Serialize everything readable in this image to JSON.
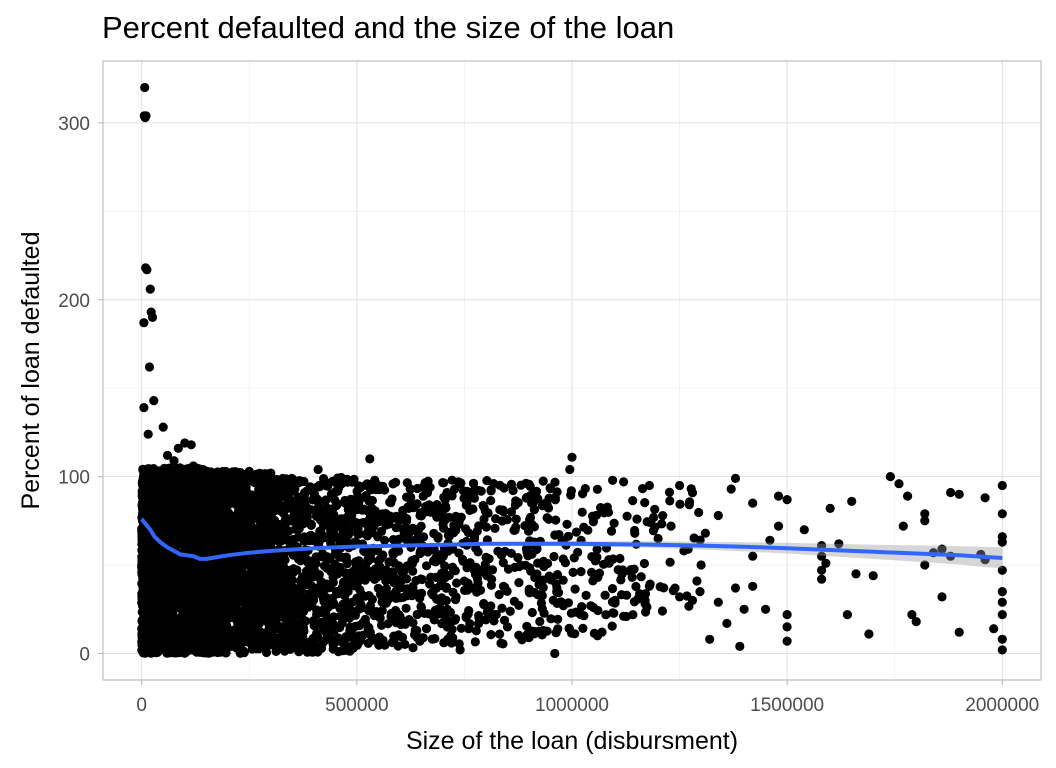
{
  "chart_data": {
    "type": "scatter",
    "title": "Percent defaulted and the size of the loan",
    "xlabel": "Size of the loan (disbursment)",
    "ylabel": "Percent of loan defaulted",
    "xlim": [
      -90000,
      2090000
    ],
    "ylim": [
      -15,
      335
    ],
    "x_ticks": [
      0,
      500000,
      1000000,
      1500000,
      2000000
    ],
    "x_tick_labels": [
      "0",
      "500000",
      "1000000",
      "1500000",
      "2000000"
    ],
    "y_ticks": [
      0,
      100,
      200,
      300
    ],
    "y_tick_labels": [
      "0",
      "100",
      "200",
      "300"
    ],
    "grid": true,
    "legend": "none",
    "point_color": "#000000",
    "smooth_color": "#3366FF",
    "band_color": "#999999",
    "outliers": [
      [
        7000,
        320
      ],
      [
        6000,
        304
      ],
      [
        10000,
        304
      ],
      [
        8000,
        303
      ],
      [
        9000,
        218
      ],
      [
        12000,
        217
      ],
      [
        20000,
        206
      ],
      [
        5000,
        187
      ],
      [
        22000,
        193
      ],
      [
        25000,
        190
      ],
      [
        18000,
        162
      ],
      [
        5000,
        139
      ],
      [
        28000,
        143
      ],
      [
        15000,
        124
      ],
      [
        50000,
        128
      ],
      [
        60000,
        112
      ],
      [
        75000,
        109
      ],
      [
        85000,
        116
      ],
      [
        100000,
        119
      ],
      [
        115000,
        118
      ],
      [
        120000,
        106
      ],
      [
        140000,
        104
      ],
      [
        300000,
        102
      ],
      [
        410000,
        104
      ],
      [
        530000,
        110
      ],
      [
        1000000,
        111
      ],
      [
        995000,
        104
      ],
      [
        1120000,
        97
      ],
      [
        1180000,
        95
      ],
      [
        1250000,
        95
      ],
      [
        1380000,
        99
      ],
      [
        1370000,
        93
      ],
      [
        1480000,
        89
      ],
      [
        1420000,
        85
      ],
      [
        1500000,
        87
      ],
      [
        1600000,
        82
      ],
      [
        1650000,
        86
      ],
      [
        1740000,
        100
      ],
      [
        1760000,
        96
      ],
      [
        1780000,
        89
      ],
      [
        1820000,
        79
      ],
      [
        1820000,
        75
      ],
      [
        1880000,
        91
      ],
      [
        1900000,
        90
      ],
      [
        1960000,
        88
      ],
      [
        2000000,
        95
      ],
      [
        2000000,
        79
      ],
      [
        1770000,
        72
      ],
      [
        1860000,
        59
      ],
      [
        1840000,
        57
      ],
      [
        1880000,
        55
      ],
      [
        1820000,
        50
      ],
      [
        1950000,
        56
      ],
      [
        1960000,
        53
      ],
      [
        2000000,
        66
      ],
      [
        2000000,
        63
      ],
      [
        2000000,
        47
      ],
      [
        1580000,
        61
      ],
      [
        1580000,
        55
      ],
      [
        1590000,
        51
      ],
      [
        1580000,
        47
      ],
      [
        1580000,
        42
      ],
      [
        1660000,
        45
      ],
      [
        1700000,
        44
      ],
      [
        1640000,
        22
      ],
      [
        1690000,
        11
      ],
      [
        1790000,
        22
      ],
      [
        1800000,
        18
      ],
      [
        1860000,
        32
      ],
      [
        1900000,
        12
      ],
      [
        1980000,
        14
      ],
      [
        2000000,
        35
      ],
      [
        2000000,
        29
      ],
      [
        2000000,
        22
      ],
      [
        2000000,
        8
      ],
      [
        2000000,
        2
      ],
      [
        1500000,
        22
      ],
      [
        1500000,
        15
      ],
      [
        1500000,
        7
      ],
      [
        1450000,
        25
      ],
      [
        1400000,
        25
      ],
      [
        1380000,
        37
      ],
      [
        1390000,
        4
      ],
      [
        1420000,
        38
      ],
      [
        1320000,
        8
      ],
      [
        1340000,
        29
      ],
      [
        1360000,
        17
      ],
      [
        1300000,
        50
      ],
      [
        1280000,
        30
      ],
      [
        1250000,
        32
      ],
      [
        1210000,
        24
      ],
      [
        1180000,
        38
      ],
      [
        1170000,
        30
      ],
      [
        1140000,
        43
      ],
      [
        1120000,
        21
      ],
      [
        1100000,
        30
      ],
      [
        1060000,
        43
      ],
      [
        930000,
        33
      ],
      [
        960000,
        0
      ],
      [
        980000,
        27
      ],
      [
        1020000,
        22
      ],
      [
        1050000,
        26
      ],
      [
        900000,
        9
      ],
      [
        850000,
        15
      ],
      [
        800000,
        19
      ],
      [
        760000,
        14
      ],
      [
        740000,
        2
      ],
      [
        710000,
        25
      ],
      [
        680000,
        19
      ],
      [
        650000,
        26
      ],
      [
        600000,
        21
      ],
      [
        560000,
        31
      ],
      [
        1200000,
        65
      ],
      [
        1230000,
        72
      ],
      [
        1260000,
        58
      ],
      [
        1310000,
        68
      ],
      [
        1340000,
        78
      ],
      [
        1420000,
        55
      ],
      [
        1460000,
        64
      ],
      [
        1480000,
        72
      ],
      [
        1540000,
        70
      ],
      [
        1620000,
        62
      ]
    ],
    "dense_regions": [
      {
        "x_range": [
          0,
          150000
        ],
        "y_range": [
          0,
          105
        ],
        "count": 1800
      },
      {
        "x_range": [
          150000,
          300000
        ],
        "y_range": [
          0,
          103
        ],
        "count": 1100
      },
      {
        "x_range": [
          300000,
          500000
        ],
        "y_range": [
          0,
          100
        ],
        "count": 650
      },
      {
        "x_range": [
          500000,
          700000
        ],
        "y_range": [
          3,
          98
        ],
        "count": 360
      },
      {
        "x_range": [
          700000,
          900000
        ],
        "y_range": [
          5,
          98
        ],
        "count": 220
      },
      {
        "x_range": [
          900000,
          1100000
        ],
        "y_range": [
          10,
          98
        ],
        "count": 160
      },
      {
        "x_range": [
          1100000,
          1300000
        ],
        "y_range": [
          20,
          95
        ],
        "count": 60
      }
    ],
    "smooth": {
      "x": [
        0,
        10000,
        20000,
        30000,
        45000,
        60000,
        75000,
        90000,
        105000,
        120000,
        135000,
        150000,
        175000,
        200000,
        250000,
        300000,
        400000,
        500000,
        600000,
        700000,
        800000,
        900000,
        1000000,
        1100000,
        1200000,
        1300000,
        1400000,
        1500000,
        1600000,
        1700000,
        1800000,
        1900000,
        2000000
      ],
      "y": [
        76,
        73,
        70,
        66,
        62.5,
        60,
        58,
        56,
        55.5,
        55,
        53.5,
        53.5,
        54.5,
        55.5,
        57,
        58,
        59.5,
        60.5,
        61,
        61.5,
        62,
        62,
        62,
        61.8,
        61.5,
        61,
        60.3,
        59.5,
        58.5,
        57.5,
        56.5,
        55.5,
        54
      ],
      "se": [
        1.6,
        1.4,
        1.2,
        1.0,
        0.8,
        0.7,
        0.6,
        0.6,
        0.6,
        0.6,
        0.6,
        0.6,
        0.6,
        0.6,
        0.6,
        0.6,
        0.6,
        0.7,
        0.8,
        0.9,
        1.0,
        1.2,
        1.4,
        1.6,
        1.9,
        2.2,
        2.6,
        3.0,
        3.5,
        4.0,
        4.6,
        5.2,
        6.0
      ]
    }
  }
}
